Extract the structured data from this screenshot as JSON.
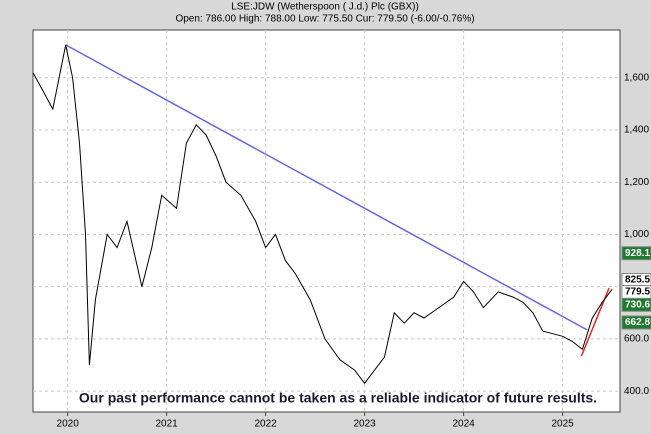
{
  "chart_data": {
    "type": "line",
    "title": "LSE:JDW (Wetherspoon ( J.d.) Plc (GBX))",
    "subtitle": "Open: 786.00 High: 788.00 Low: 775.50 Cur: 779.50 (-6.00/-0.76%)",
    "annotation": "Our past performance cannot be taken as a reliable indicator of future results.",
    "x": [
      2019.65,
      2019.75,
      2019.85,
      2019.98,
      2020.05,
      2020.12,
      2020.18,
      2020.22,
      2020.28,
      2020.4,
      2020.5,
      2020.6,
      2020.75,
      2020.85,
      2020.95,
      2021.1,
      2021.2,
      2021.3,
      2021.4,
      2021.5,
      2021.6,
      2021.75,
      2021.9,
      2022.0,
      2022.1,
      2022.2,
      2022.3,
      2022.45,
      2022.6,
      2022.75,
      2022.9,
      2023.0,
      2023.1,
      2023.2,
      2023.3,
      2023.4,
      2023.5,
      2023.6,
      2023.75,
      2023.9,
      2024.0,
      2024.1,
      2024.2,
      2024.35,
      2024.5,
      2024.6,
      2024.7,
      2024.8,
      2024.9,
      2025.0,
      2025.1,
      2025.2,
      2025.3,
      2025.4,
      2025.5
    ],
    "series": [
      {
        "color": "#000000",
        "values": [
          1620,
          1550,
          1480,
          1726,
          1600,
          1350,
          1000,
          500,
          750,
          1000,
          950,
          1050,
          800,
          950,
          1150,
          1100,
          1350,
          1420,
          1380,
          1300,
          1200,
          1150,
          1050,
          950,
          1000,
          900,
          850,
          750,
          600,
          520,
          480,
          430,
          480,
          530,
          700,
          660,
          700,
          680,
          720,
          760,
          820,
          780,
          720,
          780,
          760,
          740,
          700,
          630,
          620,
          610,
          590,
          560,
          680,
          740,
          790
        ]
      }
    ],
    "trend_lines": [
      {
        "color": "#6666dd",
        "x": [
          2019.98,
          2025.25
        ],
        "values": [
          1726,
          634
        ]
      },
      {
        "color": "#ee2222",
        "x": [
          2025.19,
          2025.47
        ],
        "values": [
          534,
          795
        ]
      }
    ],
    "price_levels": [
      {
        "value": 928.1,
        "color": "#1e7a2e"
      },
      {
        "value": 825.5,
        "color": "#ffffff"
      },
      {
        "value": 779.5,
        "color": "#ffffff"
      },
      {
        "value": 730.6,
        "color": "#1e7a2e"
      },
      {
        "value": 662.8,
        "color": "#1e7a2e"
      }
    ],
    "xlim": [
      2019.65,
      2025.58
    ],
    "ylim": [
      320,
      1783
    ],
    "xticks": [
      2020,
      2021,
      2022,
      2023,
      2024,
      2025
    ],
    "yticks": [
      {
        "value": 400,
        "label": "400.0"
      },
      {
        "value": 600,
        "label": "600.0"
      },
      {
        "value": 800,
        "label": "800.0"
      },
      {
        "value": 1000,
        "label": "1,000"
      },
      {
        "value": 1200,
        "label": "1,200"
      },
      {
        "value": 1400,
        "label": "1,400"
      },
      {
        "value": 1600,
        "label": "1,600"
      }
    ],
    "grid": true
  }
}
